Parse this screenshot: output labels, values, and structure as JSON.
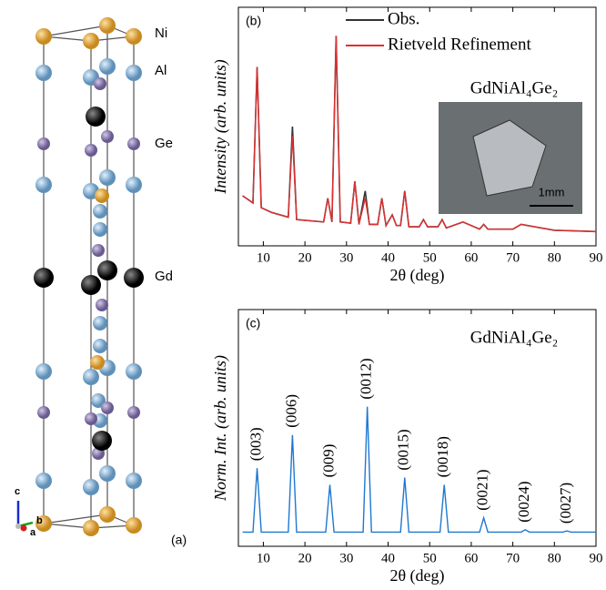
{
  "structure": {
    "atom_labels": [
      "Ni",
      "Al",
      "Ge",
      "Gd"
    ],
    "panel_label": "(a)",
    "axis_labels": [
      "c",
      "b",
      "a"
    ]
  },
  "chart_data": [
    {
      "type": "line",
      "panel_label": "(b)",
      "ylabel": "Intensity (arb. units)",
      "xlabel": "2θ (deg)",
      "annotation": "GdNiAl₄Ge₂",
      "inset_scale": "1mm",
      "xlim": [
        4,
        90
      ],
      "xticks": [
        10,
        20,
        30,
        40,
        50,
        60,
        70,
        80,
        90
      ],
      "ylim": [
        0,
        100
      ],
      "x": [
        5,
        7.5,
        8.5,
        9.5,
        12,
        16,
        17,
        18,
        24.5,
        25.5,
        26.5,
        27.5,
        28.5,
        31,
        32,
        33,
        34.5,
        35.5,
        37.5,
        38.5,
        39.5,
        41,
        42,
        43,
        44,
        45,
        47.5,
        48.5,
        49.5,
        52,
        53,
        54,
        58,
        62,
        63,
        64,
        70,
        72,
        80,
        90
      ],
      "series": [
        {
          "name": "Obs.",
          "color": "#333333",
          "values": [
            21,
            18,
            75,
            16,
            14,
            12,
            50,
            11,
            10,
            20,
            10,
            88,
            10,
            9.5,
            27,
            9,
            23,
            9,
            9,
            20,
            8.5,
            13,
            8.5,
            8.5,
            23,
            8,
            8,
            11,
            8,
            8,
            11,
            7.5,
            10,
            7,
            9,
            7,
            7,
            9,
            6.5,
            6
          ]
        },
        {
          "name": "Rietveld Refinement",
          "color": "#e03030",
          "values": [
            21,
            18,
            75,
            16,
            14,
            12,
            46,
            11,
            10,
            20,
            10,
            88,
            10,
            9.5,
            27,
            9,
            20,
            9,
            9,
            20,
            8.5,
            13,
            8.5,
            8.5,
            23,
            8,
            8,
            11,
            8,
            8,
            11,
            7.5,
            10,
            7,
            9,
            7,
            7,
            9,
            6.5,
            6
          ]
        }
      ]
    },
    {
      "type": "line",
      "panel_label": "(c)",
      "ylabel": "Norm. Int. (arb. units)",
      "xlabel": "2θ (deg)",
      "annotation": "GdNiAl₄Ge₂",
      "xlim": [
        4,
        90
      ],
      "xticks": [
        10,
        20,
        30,
        40,
        50,
        60,
        70,
        80,
        90
      ],
      "ylim": [
        0,
        100
      ],
      "x": [
        5,
        7.5,
        8.5,
        9.5,
        16,
        17,
        18,
        25,
        26,
        27,
        34,
        35,
        36,
        43,
        44,
        45,
        52.5,
        53.5,
        54.5,
        62,
        63,
        64,
        72,
        73,
        74,
        82,
        83,
        84,
        90
      ],
      "series": [
        {
          "color": "#1f78d0",
          "values": [
            6,
            6,
            33,
            6,
            6,
            47,
            6,
            6,
            26,
            6,
            6,
            59,
            6,
            6,
            29,
            6,
            6,
            26,
            6,
            6,
            12,
            6,
            6,
            7,
            6,
            6,
            6.5,
            6,
            6
          ]
        }
      ],
      "peak_labels": [
        {
          "x": 8.5,
          "label": "(003)"
        },
        {
          "x": 17,
          "label": "(006)"
        },
        {
          "x": 26,
          "label": "(009)"
        },
        {
          "x": 35,
          "label": "(0012)"
        },
        {
          "x": 44,
          "label": "(0015)"
        },
        {
          "x": 53.5,
          "label": "(0018)"
        },
        {
          "x": 63,
          "label": "(0021)"
        },
        {
          "x": 73,
          "label": "(0024)"
        },
        {
          "x": 83,
          "label": "(0027)"
        }
      ]
    }
  ]
}
